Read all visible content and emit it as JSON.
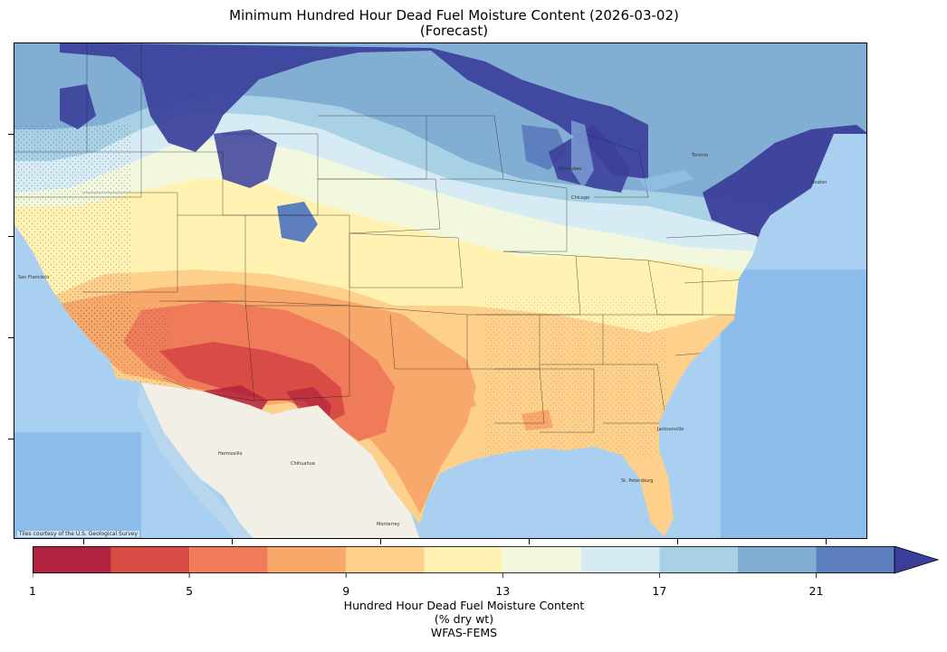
{
  "title": {
    "line1": "Minimum Hundred Hour Dead Fuel Moisture Content (2026-03-02)",
    "line2": "(Forecast)"
  },
  "map": {
    "credit": "Tiles courtesy of the U.S. Geological Survey",
    "basemap_colors": {
      "ocean": "#a9d0f0",
      "deep_ocean": "#7fb3e6",
      "land_mexico": "#f1efe6",
      "land_canada": "#e6ecd9",
      "lakes": "#9cc9ee"
    },
    "place_labels": [
      "San Francisco",
      "Hermosillo",
      "Chihuahua",
      "Monterrey",
      "Jacksonville",
      "St. Petersburg",
      "Milwaukee",
      "Chicago",
      "Boston",
      "Toronto"
    ]
  },
  "colorbar": {
    "tick_labels": [
      "1",
      "5",
      "9",
      "13",
      "17",
      "21"
    ],
    "bins": [
      {
        "from": 1,
        "to": 3,
        "color": "#b2233f"
      },
      {
        "from": 3,
        "to": 5,
        "color": "#d94c45"
      },
      {
        "from": 5,
        "to": 7,
        "color": "#ef7b5a"
      },
      {
        "from": 7,
        "to": 9,
        "color": "#f8a86a"
      },
      {
        "from": 9,
        "to": 11,
        "color": "#fdd08c"
      },
      {
        "from": 11,
        "to": 13,
        "color": "#fff2b2"
      },
      {
        "from": 13,
        "to": 15,
        "color": "#f1f8de"
      },
      {
        "from": 15,
        "to": 17,
        "color": "#d6ebf3"
      },
      {
        "from": 17,
        "to": 19,
        "color": "#a9d1e5"
      },
      {
        "from": 19,
        "to": 21,
        "color": "#83aed3"
      },
      {
        "from": 21,
        "to": 23,
        "color": "#5d7fbe"
      },
      {
        "from": 23,
        "to": 25,
        "color": "#3b3f9a"
      }
    ],
    "extend": "max",
    "label_line1": "Hundred Hour Dead Fuel Moisture Content",
    "label_line2": "(% dry wt)",
    "label_line3": "WFAS-FEMS"
  }
}
